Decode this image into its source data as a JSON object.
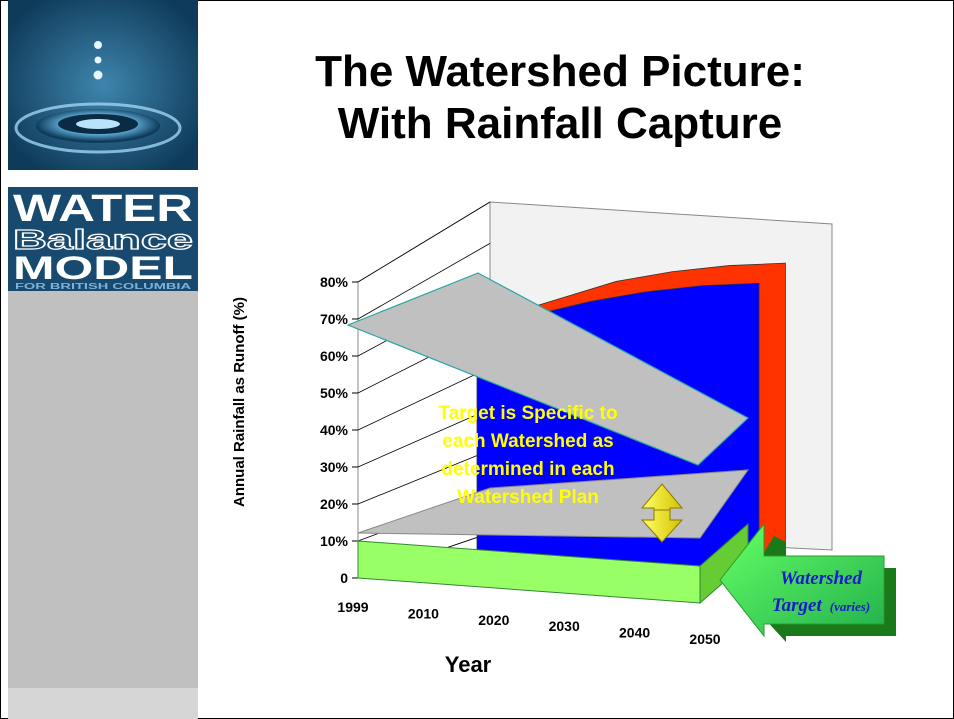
{
  "slide": {
    "title_line1": "The Watershed Picture:",
    "title_line2": "With Rainfall Capture"
  },
  "logo": {
    "word1": "WATER",
    "word2": "Balance",
    "word3": "MODEL",
    "tagline": "FOR BRITISH COLUMBIA",
    "icon": "water-droplet-ripple-icon"
  },
  "callouts": {
    "target_text": [
      "Target is Specific to",
      "each Watershed as",
      "determined in each",
      "Watershed Plan"
    ],
    "arrow_line1": "Watershed",
    "arrow_line2": "Target",
    "arrow_suffix": "(varies)"
  },
  "colors": {
    "sidebar_blue": "#174a6e",
    "runoff_red": "#ff3300",
    "runoff_blue": "#0000ff",
    "target_green": "#99ff66",
    "callout_yellow": "#ffff00",
    "plane_gray": "#c0c0c0"
  },
  "chart_data": {
    "type": "area",
    "style": "3d-stacked-area",
    "title": "",
    "xlabel": "Year",
    "ylabel": "Annual Rainfall as Runoff (%)",
    "categories": [
      "1999",
      "2010",
      "2020",
      "2030",
      "2040",
      "2050"
    ],
    "y_ticks": [
      "0",
      "10%",
      "20%",
      "30%",
      "40%",
      "50%",
      "60%",
      "70%",
      "80%"
    ],
    "ylim": [
      0,
      80
    ],
    "grid": true,
    "series": [
      {
        "color": "#99ff66",
        "values": [
          10,
          10,
          10,
          10,
          10,
          10
        ]
      },
      {
        "color": "#0000ff",
        "values": [
          60,
          66,
          71,
          75,
          78,
          80
        ]
      },
      {
        "color": "#ff3300",
        "values": [
          62,
          68,
          74,
          78,
          81,
          83
        ]
      }
    ]
  }
}
